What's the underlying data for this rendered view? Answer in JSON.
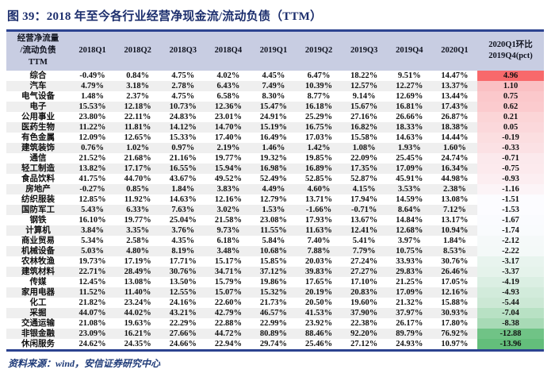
{
  "title": "图 39：2018 年至今各行业经营净现金流/流动负债（TTM）",
  "footer": {
    "source_label": "资料来源：wind，安信证券研究中心"
  },
  "colors": {
    "title_navy": "#1c2e6d",
    "table_border_navy": "#2c4390",
    "header_bg": "#c8cde2",
    "alt_row_bg": "#efefef"
  },
  "chart_data": {
    "type": "table",
    "title": "2018 年至今各行业经营净现金流/流动负债（TTM）",
    "corner_header": "经营净流量\n/流动负债\nTTM",
    "columns": [
      "2018Q1",
      "2018Q2",
      "2018Q3",
      "2018Q4",
      "2019Q1",
      "2019Q2",
      "2019Q3",
      "2019Q4",
      "2020Q1",
      "2020Q1环比\n2019Q4(pct)"
    ],
    "color_scale": {
      "max": 4.96,
      "mid": -1.53,
      "min": -13.96,
      "max_color": "#F8696B",
      "mid_color": "#FCFCFF",
      "min_color": "#63BE7B",
      "note": "red-white-green 3-color scale on last column"
    },
    "rows": [
      {
        "industry": "综合",
        "values": [
          "-0.49%",
          "0.84%",
          "4.75%",
          "4.02%",
          "4.45%",
          "6.47%",
          "18.22%",
          "9.51%",
          "14.47%"
        ],
        "pct": 4.96
      },
      {
        "industry": "汽车",
        "values": [
          "4.79%",
          "3.18%",
          "2.78%",
          "6.43%",
          "7.49%",
          "10.39%",
          "12.57%",
          "12.27%",
          "13.37%"
        ],
        "pct": 1.1
      },
      {
        "industry": "电气设备",
        "values": [
          "1.48%",
          "2.37%",
          "4.75%",
          "6.58%",
          "8.30%",
          "8.77%",
          "9.14%",
          "12.69%",
          "13.44%"
        ],
        "pct": 0.75
      },
      {
        "industry": "电子",
        "values": [
          "15.53%",
          "12.18%",
          "10.73%",
          "12.36%",
          "15.47%",
          "16.18%",
          "15.67%",
          "16.81%",
          "17.43%"
        ],
        "pct": 0.62
      },
      {
        "industry": "公用事业",
        "values": [
          "23.80%",
          "22.11%",
          "24.83%",
          "23.01%",
          "24.91%",
          "25.29%",
          "27.16%",
          "26.66%",
          "26.87%"
        ],
        "pct": 0.21
      },
      {
        "industry": "医药生物",
        "values": [
          "11.22%",
          "11.81%",
          "14.12%",
          "14.70%",
          "15.19%",
          "16.75%",
          "16.82%",
          "18.33%",
          "18.38%"
        ],
        "pct": 0.05
      },
      {
        "industry": "有色金属",
        "values": [
          "12.09%",
          "12.65%",
          "15.33%",
          "17.40%",
          "16.49%",
          "17.03%",
          "15.58%",
          "14.63%",
          "14.44%"
        ],
        "pct": -0.19
      },
      {
        "industry": "建筑装饰",
        "values": [
          "0.76%",
          "1.02%",
          "0.97%",
          "2.19%",
          "1.46%",
          "1.42%",
          "1.08%",
          "1.93%",
          "1.60%"
        ],
        "pct": -0.33
      },
      {
        "industry": "通信",
        "values": [
          "21.52%",
          "21.68%",
          "21.16%",
          "19.77%",
          "19.32%",
          "19.85%",
          "22.09%",
          "25.45%",
          "24.74%"
        ],
        "pct": -0.71
      },
      {
        "industry": "轻工制造",
        "values": [
          "13.82%",
          "17.17%",
          "16.55%",
          "15.94%",
          "16.98%",
          "16.89%",
          "17.35%",
          "17.09%",
          "16.34%"
        ],
        "pct": -0.75
      },
      {
        "industry": "食品饮料",
        "values": [
          "41.75%",
          "44.70%",
          "43.67%",
          "49.52%",
          "52.49%",
          "52.85%",
          "52.87%",
          "45.91%",
          "44.98%"
        ],
        "pct": -0.93
      },
      {
        "industry": "房地产",
        "values": [
          "-0.27%",
          "0.85%",
          "1.84%",
          "3.83%",
          "4.49%",
          "4.60%",
          "4.15%",
          "3.53%",
          "2.38%"
        ],
        "pct": -1.16
      },
      {
        "industry": "纺织服装",
        "values": [
          "12.85%",
          "11.92%",
          "14.63%",
          "12.16%",
          "12.79%",
          "13.71%",
          "17.94%",
          "14.59%",
          "13.08%"
        ],
        "pct": -1.51
      },
      {
        "industry": "国防军工",
        "values": [
          "5.43%",
          "6.33%",
          "7.63%",
          "3.02%",
          "1.53%",
          "-1.66%",
          "-0.71%",
          "8.64%",
          "7.12%"
        ],
        "pct": -1.53
      },
      {
        "industry": "钢铁",
        "values": [
          "16.10%",
          "19.77%",
          "25.04%",
          "21.58%",
          "23.08%",
          "17.93%",
          "13.67%",
          "14.84%",
          "13.17%"
        ],
        "pct": -1.67
      },
      {
        "industry": "计算机",
        "values": [
          "3.84%",
          "3.35%",
          "3.76%",
          "9.73%",
          "11.55%",
          "11.63%",
          "12.41%",
          "12.68%",
          "10.94%"
        ],
        "pct": -1.74
      },
      {
        "industry": "商业贸易",
        "values": [
          "5.34%",
          "2.58%",
          "4.35%",
          "6.18%",
          "5.84%",
          "7.40%",
          "5.41%",
          "3.97%",
          "1.84%"
        ],
        "pct": -2.12
      },
      {
        "industry": "机械设备",
        "values": [
          "5.03%",
          "4.80%",
          "8.19%",
          "3.48%",
          "10.68%",
          "7.88%",
          "7.79%",
          "10.75%",
          "8.53%"
        ],
        "pct": -2.22
      },
      {
        "industry": "农林牧渔",
        "values": [
          "19.73%",
          "17.19%",
          "17.71%",
          "15.17%",
          "15.85%",
          "20.03%",
          "27.24%",
          "33.93%",
          "30.76%"
        ],
        "pct": -3.17
      },
      {
        "industry": "建筑材料",
        "values": [
          "22.71%",
          "28.49%",
          "30.76%",
          "34.71%",
          "37.12%",
          "39.83%",
          "27.27%",
          "29.83%",
          "26.46%"
        ],
        "pct": -3.37
      },
      {
        "industry": "传媒",
        "values": [
          "12.45%",
          "13.08%",
          "13.50%",
          "15.79%",
          "19.86%",
          "17.65%",
          "17.10%",
          "21.25%",
          "17.05%"
        ],
        "pct": -4.19
      },
      {
        "industry": "家用电器",
        "values": [
          "11.52%",
          "11.40%",
          "12.55%",
          "15.07%",
          "15.32%",
          "20.19%",
          "20.83%",
          "17.09%",
          "12.16%"
        ],
        "pct": -4.93
      },
      {
        "industry": "化工",
        "values": [
          "21.82%",
          "23.24%",
          "24.16%",
          "22.60%",
          "21.73%",
          "20.50%",
          "19.60%",
          "21.32%",
          "15.88%"
        ],
        "pct": -5.44
      },
      {
        "industry": "采掘",
        "values": [
          "44.07%",
          "44.02%",
          "43.21%",
          "42.79%",
          "46.57%",
          "41.53%",
          "37.90%",
          "37.97%",
          "30.93%"
        ],
        "pct": -7.04
      },
      {
        "industry": "交通运输",
        "values": [
          "21.08%",
          "19.63%",
          "22.29%",
          "22.88%",
          "22.99%",
          "23.92%",
          "22.38%",
          "26.17%",
          "17.80%"
        ],
        "pct": -8.38
      },
      {
        "industry": "非银金融",
        "values": [
          "23.09%",
          "16.21%",
          "27.66%",
          "44.72%",
          "80.89%",
          "88.46%",
          "92.20%",
          "89.79%",
          "76.92%"
        ],
        "pct": -12.88
      },
      {
        "industry": "休闲服务",
        "values": [
          "24.62%",
          "24.35%",
          "24.66%",
          "22.94%",
          "29.74%",
          "25.46%",
          "27.12%",
          "24.93%",
          "10.97%"
        ],
        "pct": -13.96
      }
    ]
  }
}
